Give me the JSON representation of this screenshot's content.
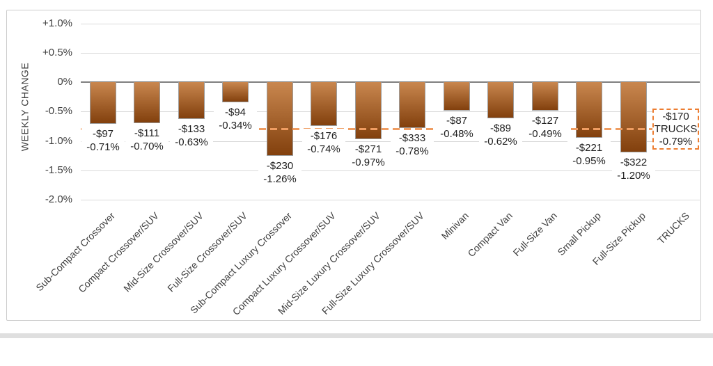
{
  "chart_data": {
    "type": "bar",
    "title": "",
    "xlabel": "",
    "ylabel": "WEEKLY CHANGE",
    "ylim": [
      -2.0,
      1.0
    ],
    "grid": true,
    "legend": "none",
    "y_ticks": [
      {
        "value": 1.0,
        "label": "+1.0%"
      },
      {
        "value": 0.5,
        "label": "+0.5%"
      },
      {
        "value": 0.0,
        "label": "0%"
      },
      {
        "value": -0.5,
        "label": "-0.5%"
      },
      {
        "value": -1.0,
        "label": "-1.0%"
      },
      {
        "value": -1.5,
        "label": "-1.5%"
      },
      {
        "value": -2.0,
        "label": "-2.0%"
      }
    ],
    "categories": [
      "Sub-Compact Crossover",
      "Compact Crossover/SUV",
      "Mid-Size Crossover/SUV",
      "Full-Size Crossover/SUV",
      "Sub-Compact Luxury Crossover",
      "Compact Luxury Crossover/SUV",
      "Mid-Size Luxury Crossover/SUV",
      "Full-Size Luxury Crossover/SUV",
      "Minivan",
      "Compact Van",
      "Full-Size Van",
      "Small Pickup",
      "Full-Size Pickup",
      "TRUCKS"
    ],
    "series": [
      {
        "name": "Weekly % Change",
        "values": [
          -0.71,
          -0.7,
          -0.63,
          -0.34,
          -1.26,
          -0.74,
          -0.97,
          -0.78,
          -0.48,
          -0.62,
          -0.49,
          -0.95,
          -1.2,
          null
        ]
      },
      {
        "name": "Weekly $ Change",
        "values": [
          -97,
          -111,
          -133,
          -94,
          -230,
          -176,
          -271,
          -333,
          -87,
          -89,
          -127,
          -221,
          -322,
          null
        ]
      }
    ],
    "bar_labels": [
      [
        "-$97",
        "-0.71%"
      ],
      [
        "-$111",
        "-0.70%"
      ],
      [
        "-$133",
        "-0.63%"
      ],
      [
        "-$94",
        "-0.34%"
      ],
      [
        "-$230",
        "-1.26%"
      ],
      [
        "-$176",
        "-0.74%"
      ],
      [
        "-$271",
        "-0.97%"
      ],
      [
        "-$333",
        "-0.78%"
      ],
      [
        "-$87",
        "-0.48%"
      ],
      [
        "-$89",
        "-0.62%"
      ],
      [
        "-$127",
        "-0.49%"
      ],
      [
        "-$221",
        "-0.95%"
      ],
      [
        "-$322",
        "-1.20%"
      ]
    ],
    "reference_line": {
      "value": -0.79,
      "style": "dashed",
      "color": "#EF9D62",
      "box": {
        "lines": [
          "-$170",
          "TRUCKS",
          "-0.79%"
        ],
        "border_color": "#ED7D31"
      }
    },
    "colors": {
      "bar_top": "#C9874F",
      "bar_bottom": "#82400D",
      "bar_border": "#9E9E9E",
      "grid": "#D9D9D9",
      "zero_line": "#7F7F7F",
      "frame_border": "#CCCCCC",
      "text": "#3F3F3F"
    }
  }
}
